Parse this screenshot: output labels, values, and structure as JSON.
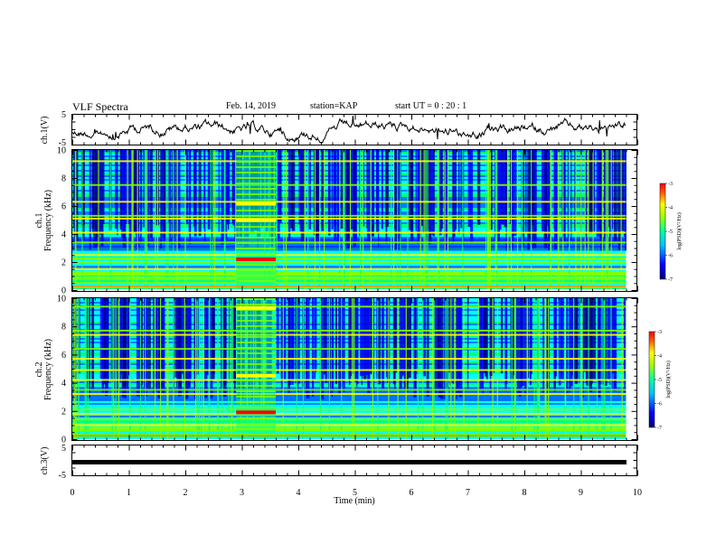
{
  "header": {
    "title": "VLF Spectra",
    "date": "Feb. 14, 2019",
    "station": "station=KAP",
    "start": "start  UT  =   0  : 20 : 1"
  },
  "chart_data": [
    {
      "type": "line",
      "name": "ch1-waveform",
      "ylabel": "ch.1(V)",
      "ylim": [
        -5,
        5
      ],
      "yticks": [
        "5",
        "-5"
      ],
      "x_range": [
        0,
        10
      ],
      "description_values": "noisy voltage trace near 0 V over 0 to 9.8 min"
    },
    {
      "type": "heatmap",
      "name": "ch1-spectrogram",
      "ylabel": "ch.1\nFrequency (kHz)",
      "ylim": [
        0,
        10
      ],
      "yticks": [
        "0",
        "2",
        "4",
        "6",
        "8",
        "10"
      ],
      "x_range": [
        0,
        9.8
      ],
      "colorbar": {
        "label": "log(PSD)(V²/Hz)",
        "ticks": [
          "-3",
          "-4",
          "-5",
          "-6",
          "-7"
        ],
        "range": [
          -7,
          -3
        ]
      },
      "bands_khz": [
        0.2,
        0.5,
        0.8,
        1.1,
        1.5,
        2.0,
        2.25,
        2.5,
        3.4,
        4.1,
        5.1,
        5.3,
        6.3,
        7.5,
        9.2
      ],
      "event": {
        "x_start": 2.9,
        "x_end": 3.6,
        "note": "enhanced emission near 2.2 kHz and 5.0 kHz"
      }
    },
    {
      "type": "heatmap",
      "name": "ch2-spectrogram",
      "ylabel": "ch.2\nFrequency (kHz)",
      "ylim": [
        0,
        10
      ],
      "yticks": [
        "0",
        "2",
        "4",
        "6",
        "8",
        "10"
      ],
      "x_range": [
        0,
        9.8
      ],
      "colorbar": {
        "label": "log(PSD)(V²/Hz)",
        "ticks": [
          "-3",
          "-4",
          "-5",
          "-6",
          "-7"
        ],
        "range": [
          -7,
          -3
        ]
      },
      "bands_khz": [
        0.3,
        0.6,
        1.0,
        1.4,
        1.8,
        2.1,
        3.2,
        3.5,
        4.2,
        4.9,
        5.7,
        6.4,
        7.4,
        7.7,
        9.4
      ],
      "event": {
        "x_start": 2.9,
        "x_end": 3.6,
        "note": "enhanced emission near 1.9, 4.5 and 9.3 kHz"
      }
    },
    {
      "type": "line",
      "name": "ch3-waveform",
      "ylabel": "ch.3(V)",
      "ylim": [
        -5,
        5
      ],
      "yticks": [
        "5",
        "-5"
      ],
      "x_range": [
        0,
        9.8
      ],
      "values_constant": -1.3
    }
  ],
  "xaxis": {
    "label": "Time  (min)",
    "ticks": [
      "0",
      "1",
      "2",
      "3",
      "4",
      "5",
      "6",
      "7",
      "8",
      "9",
      "10"
    ],
    "range": [
      0,
      10
    ]
  },
  "colors": {
    "colormap": [
      "#00008b",
      "#0000ff",
      "#0080ff",
      "#00ffff",
      "#00ff80",
      "#80ff00",
      "#ffff00",
      "#ff8000",
      "#ff0000"
    ]
  }
}
